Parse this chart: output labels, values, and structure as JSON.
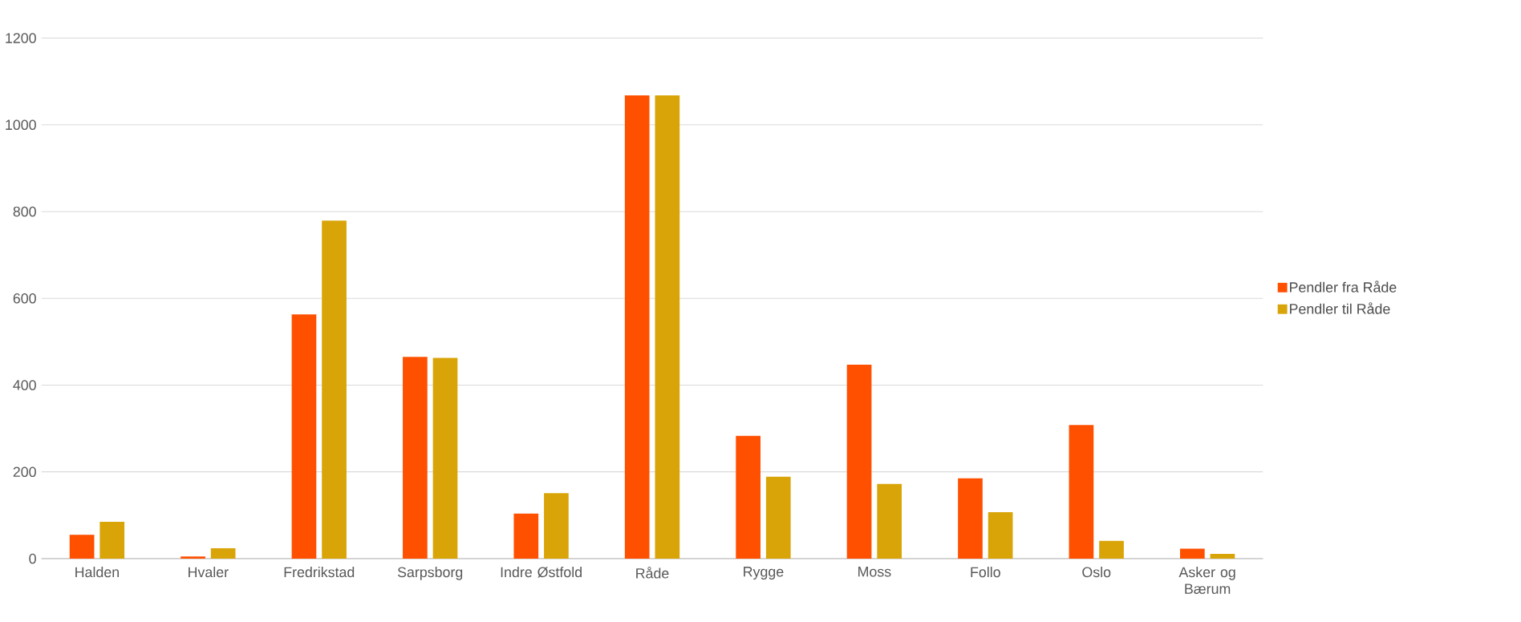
{
  "chart_data": {
    "type": "bar",
    "categories": [
      "Halden",
      "Hvaler",
      "Fredrikstad",
      "Sarpsborg",
      "Indre Østfold",
      "Råde",
      "Rygge",
      "Moss",
      "Follo",
      "Oslo",
      "Asker og Bærum"
    ],
    "series": [
      {
        "name": "Pendler fra Råde",
        "color": "#ff5000",
        "values": [
          55,
          5,
          563,
          465,
          104,
          1068,
          283,
          447,
          185,
          308,
          23
        ]
      },
      {
        "name": "Pendler til Råde",
        "color": "#d9a407",
        "values": [
          85,
          24,
          779,
          463,
          151,
          1068,
          189,
          172,
          107,
          41,
          11
        ]
      }
    ],
    "ylim": [
      0,
      1200
    ],
    "yticks": [
      0,
      200,
      400,
      600,
      800,
      1000,
      1200
    ],
    "grid": "y",
    "legend": "right"
  }
}
